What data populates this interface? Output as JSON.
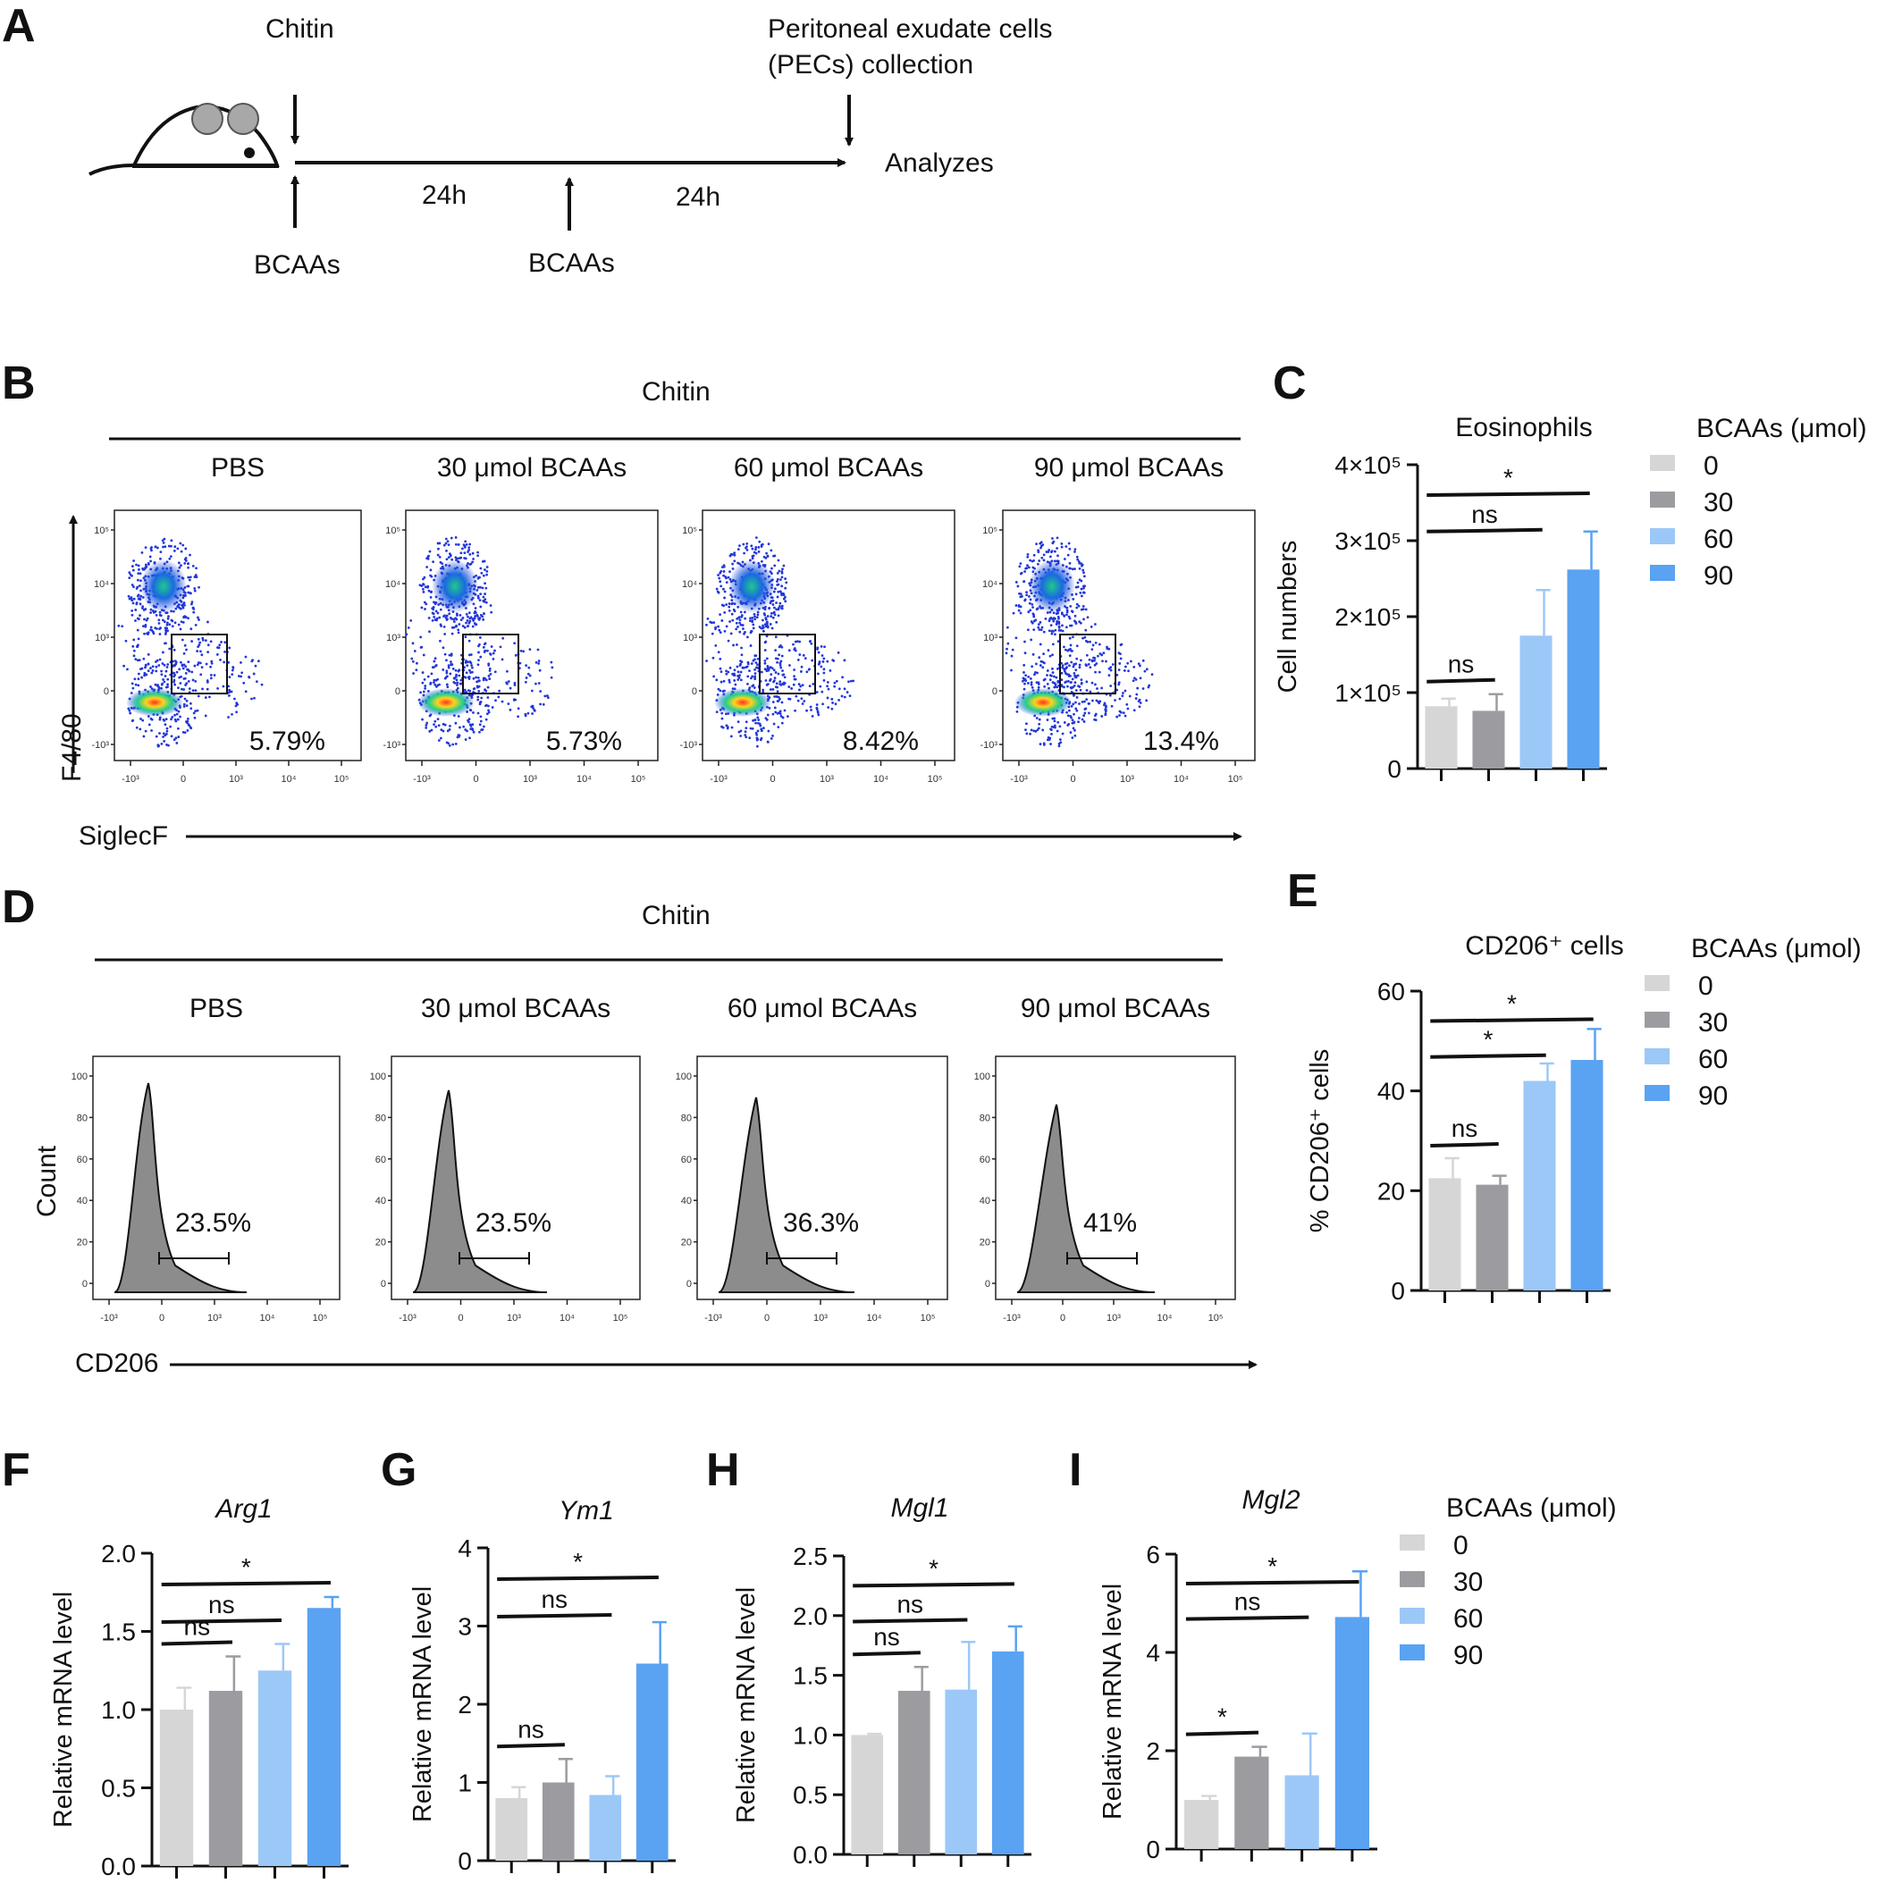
{
  "panel_letters": {
    "A": "A",
    "B": "B",
    "C": "C",
    "D": "D",
    "E": "E",
    "F": "F",
    "G": "G",
    "H": "H",
    "I": "I"
  },
  "colors": {
    "c0": "#d6d6d6",
    "c30": "#9c9ca0",
    "c60": "#9cc8f7",
    "c90": "#5aa2f2",
    "axis": "#111111",
    "hist_fill": "#8c8c8c"
  },
  "schematic": {
    "chitin_label": "Chitin",
    "pec_line1": "Peritoneal exudate cells",
    "pec_line2": "(PECs) collection",
    "analyzes": "Analyzes",
    "interval1": "24h",
    "interval2": "24h",
    "bcaas_1": "BCAAs",
    "bcaas_2": "BCAAs"
  },
  "flow_B": {
    "header": "Chitin",
    "y_axis": "F4/80",
    "x_axis": "SiglecF",
    "y_ticks": [
      "10⁵",
      "10⁴",
      "10³",
      "0",
      "-10³"
    ],
    "x_ticks": [
      "-10³",
      "0",
      "10³",
      "10⁴",
      "10⁵"
    ],
    "plots": [
      {
        "title": "PBS",
        "pct": "5.79%"
      },
      {
        "title": "30 μmol BCAAs",
        "pct": "5.73%"
      },
      {
        "title": "60 μmol  BCAAs",
        "pct": "8.42%"
      },
      {
        "title": "90 μmol  BCAAs",
        "pct": "13.4%"
      }
    ]
  },
  "flow_D": {
    "header": "Chitin",
    "y_axis": "Count",
    "x_axis": "CD206",
    "y_ticks": [
      "100",
      "80",
      "60",
      "40",
      "20",
      "0"
    ],
    "x_ticks": [
      "-10³",
      "0",
      "10³",
      "10⁴",
      "10⁵"
    ],
    "plots": [
      {
        "title": "PBS",
        "pct": "23.5%"
      },
      {
        "title": "30 μmol BCAAs",
        "pct": "23.5%"
      },
      {
        "title": "60 μmol BCAAs",
        "pct": "36.3%"
      },
      {
        "title": "90 μmol BCAAs",
        "pct": "41%"
      }
    ]
  },
  "legends": {
    "title": "BCAAs (μmol)",
    "items": [
      "0",
      "30",
      "60",
      "90"
    ]
  },
  "chart_data": [
    {
      "id": "C",
      "type": "bar",
      "title": "Eosinophils",
      "ylabel": "Cell numbers",
      "ylim": [
        0,
        400000
      ],
      "ytick_labels": [
        "0",
        "1×10⁵",
        "2×10⁵",
        "3×10⁵",
        "4×10⁵"
      ],
      "categories": [
        "0",
        "30",
        "60",
        "90"
      ],
      "values": [
        82000,
        76000,
        175000,
        262000
      ],
      "errors": [
        10000,
        22000,
        60000,
        50000
      ],
      "sig": [
        {
          "from": 0,
          "to": 1,
          "level": 8,
          "label": "ns"
        },
        {
          "from": 0,
          "to": 2,
          "level": 2,
          "label": "ns"
        },
        {
          "from": 0,
          "to": 3,
          "level": 0,
          "label": "*"
        }
      ]
    },
    {
      "id": "E",
      "type": "bar",
      "title": "CD206⁺ cells",
      "ylabel": "% CD206⁺ cells",
      "ylim": [
        0,
        60
      ],
      "ytick_labels": [
        "0",
        "20",
        "40",
        "60"
      ],
      "categories": [
        "0",
        "30",
        "60",
        "90"
      ],
      "values": [
        22.5,
        21.2,
        42,
        46.2
      ],
      "errors": [
        4,
        1.8,
        3.5,
        6.2
      ],
      "sig": [
        {
          "from": 0,
          "to": 1,
          "level": 8,
          "label": "ns"
        },
        {
          "from": 0,
          "to": 2,
          "level": 2,
          "label": "*"
        },
        {
          "from": 0,
          "to": 3,
          "level": 0,
          "label": "*"
        }
      ]
    },
    {
      "id": "F",
      "type": "bar",
      "title": "Arg1",
      "ylabel": "Relative mRNA level",
      "ylim": [
        0,
        2
      ],
      "ytick_labels": [
        "0.0",
        "0.5",
        "1.0",
        "1.5",
        "2.0"
      ],
      "categories": [
        "0",
        "30",
        "60",
        "90"
      ],
      "values": [
        1.0,
        1.12,
        1.25,
        1.65
      ],
      "errors": [
        0.14,
        0.22,
        0.17,
        0.07
      ],
      "sig": [
        {
          "from": 0,
          "to": 1,
          "level": 8,
          "label": "ns"
        },
        {
          "from": 0,
          "to": 2,
          "level": 2,
          "label": "ns"
        },
        {
          "from": 0,
          "to": 3,
          "level": 0,
          "label": "*"
        }
      ]
    },
    {
      "id": "G",
      "type": "bar",
      "title": "Ym1",
      "ylabel": "Relative mRNA level",
      "ylim": [
        0,
        4
      ],
      "ytick_labels": [
        "0",
        "1",
        "2",
        "3",
        "4"
      ],
      "categories": [
        "0",
        "30",
        "60",
        "90"
      ],
      "values": [
        0.8,
        1.0,
        0.84,
        2.52
      ],
      "errors": [
        0.14,
        0.3,
        0.24,
        0.53
      ],
      "sig": [
        {
          "from": 0,
          "to": 1,
          "level": 8,
          "label": "ns"
        },
        {
          "from": 0,
          "to": 2,
          "level": 2,
          "label": "ns"
        },
        {
          "from": 0,
          "to": 3,
          "level": 0,
          "label": "*"
        }
      ]
    },
    {
      "id": "H",
      "type": "bar",
      "title": "Mgl1",
      "ylabel": "Relative mRNA level",
      "ylim": [
        0,
        2.5
      ],
      "ytick_labels": [
        "0.0",
        "0.5",
        "1.0",
        "1.5",
        "2.0",
        "2.5"
      ],
      "categories": [
        "0",
        "30",
        "60",
        "90"
      ],
      "values": [
        1.0,
        1.37,
        1.38,
        1.7
      ],
      "errors": [
        0.01,
        0.2,
        0.4,
        0.21
      ],
      "sig": [
        {
          "from": 0,
          "to": 1,
          "level": 8,
          "label": "ns"
        },
        {
          "from": 0,
          "to": 2,
          "level": 2,
          "label": "ns"
        },
        {
          "from": 0,
          "to": 3,
          "level": 0,
          "label": "*"
        }
      ]
    },
    {
      "id": "I",
      "type": "bar",
      "title": "Mgl2",
      "ylabel": "Relative mRNA level",
      "ylim": [
        0,
        6
      ],
      "ytick_labels": [
        "0",
        "2",
        "4",
        "6"
      ],
      "categories": [
        "0",
        "30",
        "60",
        "90"
      ],
      "values": [
        1.0,
        1.88,
        1.5,
        4.72
      ],
      "errors": [
        0.08,
        0.2,
        0.85,
        0.93
      ],
      "sig": [
        {
          "from": 0,
          "to": 1,
          "level": 8,
          "label": "*"
        },
        {
          "from": 0,
          "to": 2,
          "level": 2,
          "label": "ns"
        },
        {
          "from": 0,
          "to": 3,
          "level": 0,
          "label": "*"
        }
      ]
    }
  ]
}
